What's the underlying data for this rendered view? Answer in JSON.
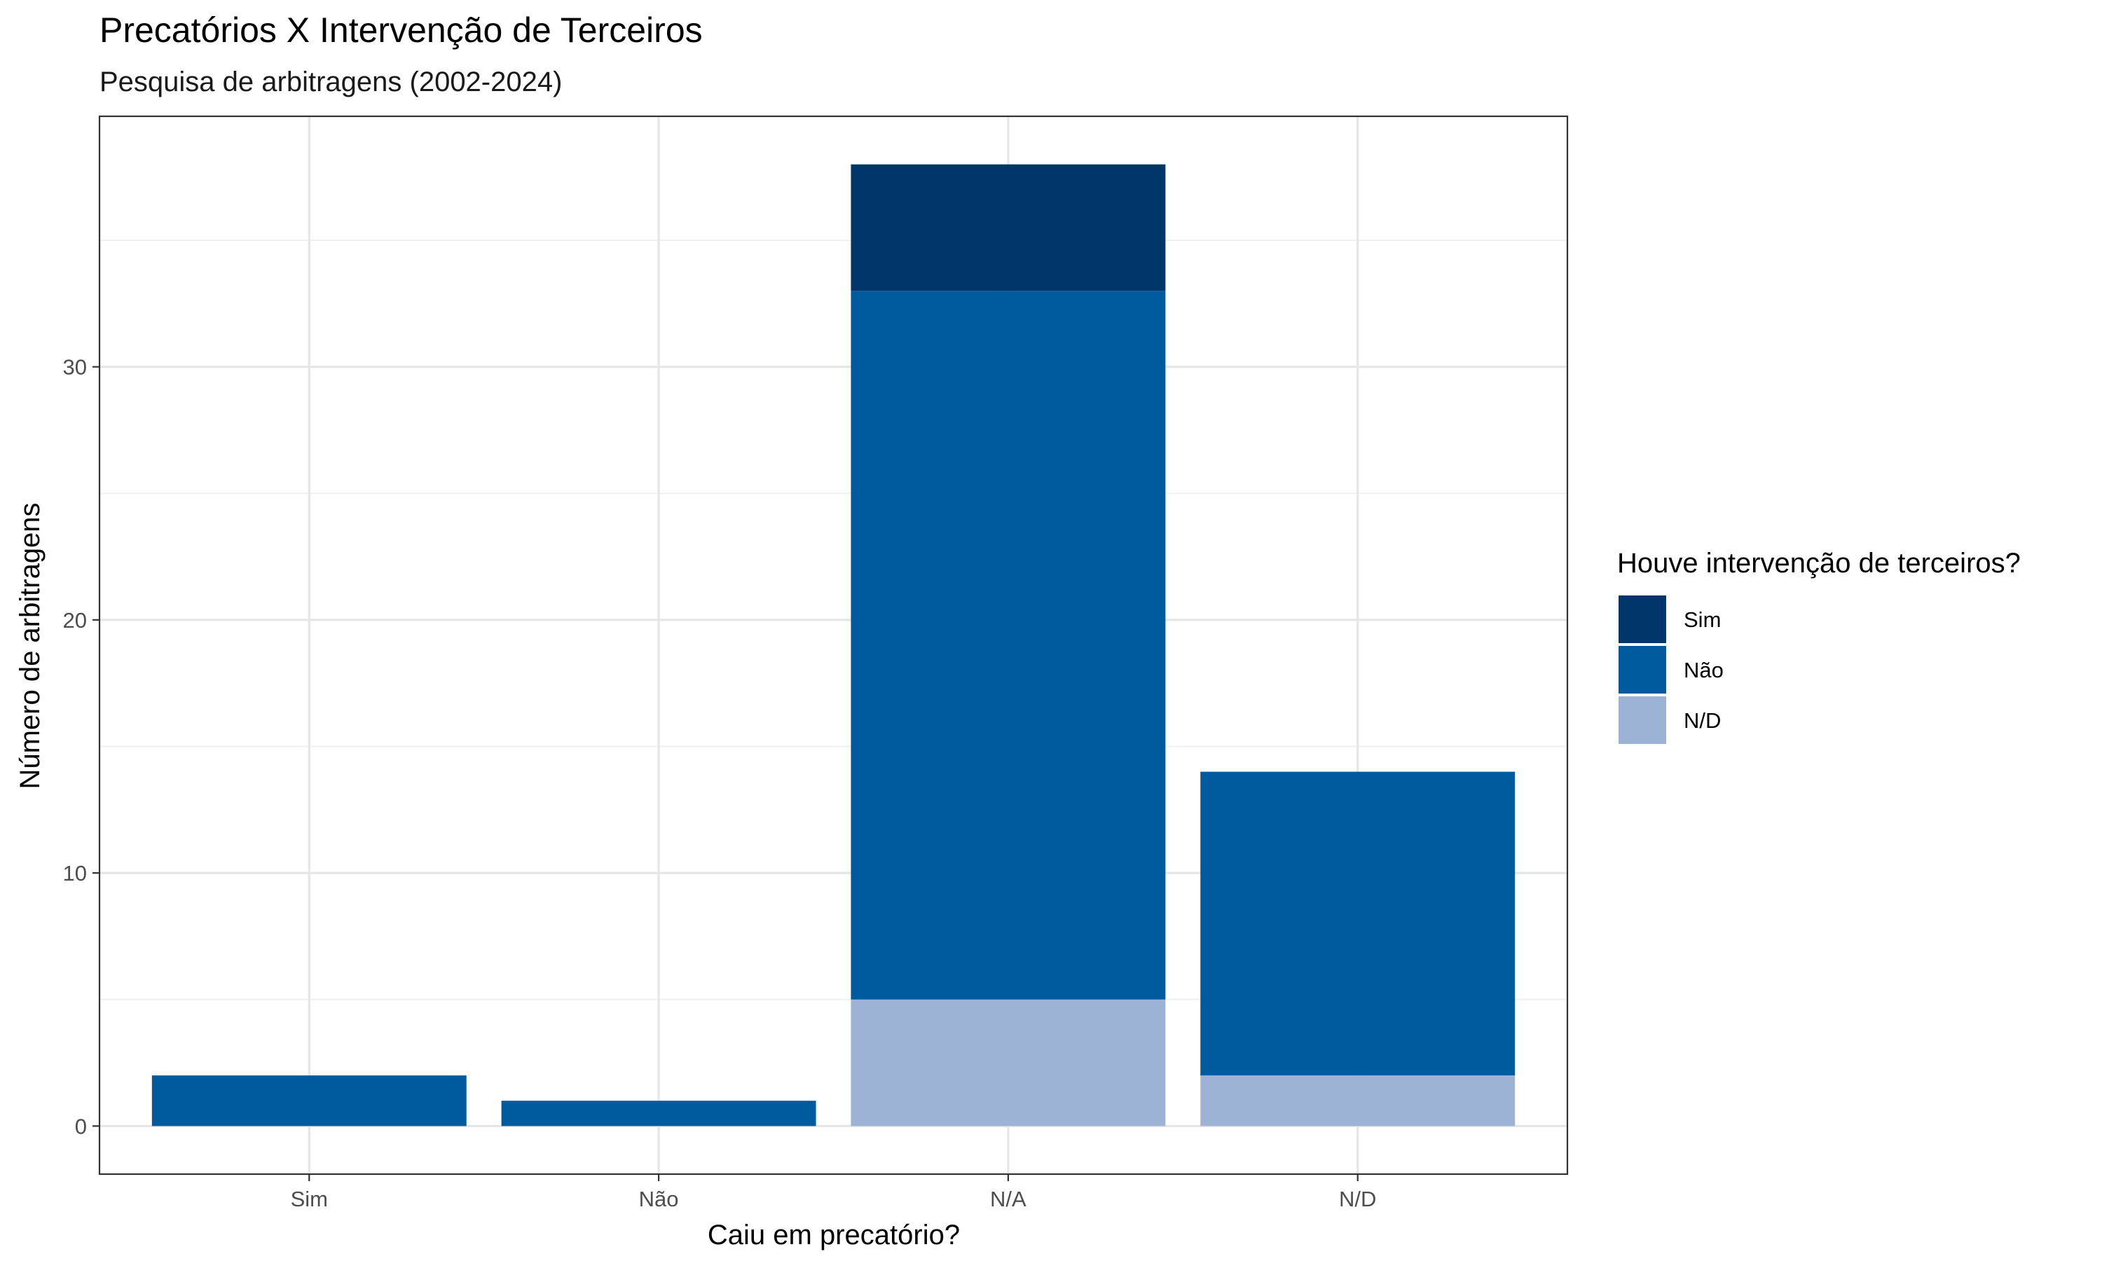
{
  "chart_data": {
    "type": "bar",
    "stacked": true,
    "title": "Precatórios X Intervenção de Terceiros",
    "subtitle": "Pesquisa de arbitragens (2002-2024)",
    "xlabel": "Caiu em precatório?",
    "ylabel": "Número de arbitragens",
    "categories": [
      "Sim",
      "Não",
      "N/A",
      "N/D"
    ],
    "series": [
      {
        "name": "N/D",
        "color": "#9db3d5",
        "values": [
          0,
          0,
          5,
          2
        ]
      },
      {
        "name": "Não",
        "color": "#005a9e",
        "values": [
          2,
          1,
          28,
          12
        ]
      },
      {
        "name": "Sim",
        "color": "#01366b",
        "values": [
          0,
          0,
          5,
          0
        ]
      }
    ],
    "yticks": [
      0,
      10,
      20,
      30
    ],
    "ylim": [
      -1.9,
      39.9
    ],
    "grid": true,
    "legend": {
      "title": "Houve intervenção de terceiros?",
      "placement": "right",
      "entries": [
        "Sim",
        "Não",
        "N/D"
      ]
    }
  }
}
